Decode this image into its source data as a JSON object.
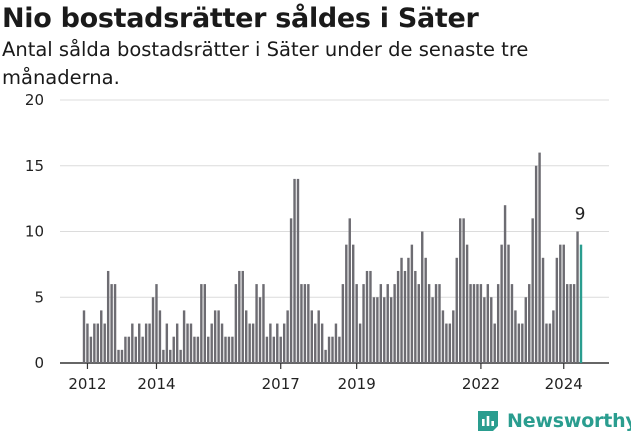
{
  "header": {
    "title": "Nio bostadsrätter såldes i Säter",
    "subtitle": "Antal sålda bostadsrätter i Säter under de senaste tre månaderna."
  },
  "brand": {
    "name": "Newsworthy"
  },
  "colors": {
    "bar": "#6d6c72",
    "highlight": "#2a9d8f",
    "grid": "#dcdcdc",
    "text": "#222222"
  },
  "chart_data": {
    "type": "bar",
    "title": "Nio bostadsrätter såldes i Säter",
    "subtitle": "Antal sålda bostadsrätter i Säter under de senaste tre månaderna.",
    "xlabel": "",
    "ylabel": "",
    "ylim": [
      0,
      20
    ],
    "yticks": [
      0,
      5,
      10,
      15,
      20
    ],
    "grid": true,
    "legend": "none",
    "x_tick_labels": [
      "2012",
      "2014",
      "2017",
      "2019",
      "2022",
      "2024"
    ],
    "values": [
      4,
      3,
      2,
      3,
      3,
      4,
      3,
      7,
      6,
      6,
      1,
      1,
      2,
      2,
      3,
      2,
      3,
      2,
      3,
      3,
      5,
      6,
      4,
      1,
      3,
      1,
      2,
      3,
      1,
      4,
      3,
      3,
      2,
      2,
      6,
      6,
      2,
      3,
      4,
      4,
      3,
      2,
      2,
      2,
      6,
      7,
      7,
      4,
      3,
      3,
      6,
      5,
      6,
      2,
      3,
      2,
      3,
      2,
      3,
      4,
      11,
      14,
      14,
      6,
      6,
      6,
      4,
      3,
      4,
      3,
      1,
      2,
      2,
      3,
      2,
      6,
      9,
      11,
      9,
      6,
      3,
      6,
      7,
      7,
      5,
      5,
      6,
      5,
      6,
      5,
      6,
      7,
      8,
      7,
      8,
      9,
      7,
      6,
      10,
      8,
      6,
      5,
      6,
      6,
      4,
      3,
      3,
      4,
      8,
      11,
      11,
      9,
      6,
      6,
      6,
      6,
      5,
      6,
      5,
      3,
      6,
      9,
      12,
      9,
      6,
      4,
      3,
      3,
      5,
      6,
      11,
      15,
      16,
      8,
      3,
      3,
      4,
      8,
      9,
      9,
      6,
      6,
      6,
      10,
      9
    ],
    "highlight_last": true,
    "last_value_label": "9"
  }
}
